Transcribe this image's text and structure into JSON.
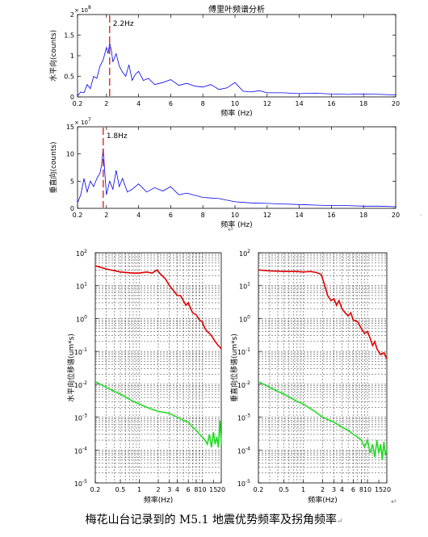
{
  "figure": {
    "caption": "梅花山台记录到的 M5.1 地震优势频率及拐角频率",
    "para_mark_1": "↵",
    "para_mark_2": "↵",
    "para_mark_3": "↵",
    "side_mark": "˙"
  },
  "colors": {
    "fft_line": "#0000ee",
    "peak_marker": "#dd0000",
    "spectrum_top": "#e00000",
    "spectrum_bottom": "#22dd22",
    "axis": "#000000",
    "grid": "#000000"
  },
  "chart_data": [
    {
      "type": "line",
      "title": "傅里叶频谱分析",
      "xlabel": "频率 (Hz)",
      "ylabel": "水平向(counts)",
      "xlim": [
        0.2,
        20
      ],
      "ylim": [
        0,
        2
      ],
      "y_multiplier": "× 10",
      "y_exponent": "8",
      "x_ticks": [
        0.2,
        2,
        4,
        6,
        8,
        10,
        12,
        14,
        16,
        18,
        20
      ],
      "x_tick_labels": [
        "0.2",
        "2",
        "4",
        "6",
        "8",
        "10",
        "12",
        "14",
        "16",
        "18",
        "20"
      ],
      "y_ticks": [
        0,
        0.5,
        1,
        1.5,
        2
      ],
      "y_tick_labels": [
        "0",
        "0.5",
        "1",
        "1.5",
        "2"
      ],
      "peak": {
        "x": 2.2,
        "label": "2.2Hz"
      },
      "series": [
        {
          "x": [
            0.2,
            0.4,
            0.6,
            0.8,
            1.0,
            1.2,
            1.4,
            1.6,
            1.8,
            2.0,
            2.1,
            2.2,
            2.3,
            2.4,
            2.6,
            2.8,
            3.0,
            3.2,
            3.4,
            3.6,
            3.8,
            4.0,
            4.3,
            4.6,
            5.0,
            5.5,
            6.0,
            6.5,
            7.0,
            7.5,
            8.0,
            8.5,
            9.0,
            9.5,
            10.0,
            10.5,
            11.0,
            11.5,
            12.0,
            13.0,
            14.0,
            15.0,
            16.0,
            17.0,
            18.0,
            19.0,
            20.0
          ],
          "y": [
            0.02,
            0.12,
            0.1,
            0.3,
            0.2,
            0.5,
            0.45,
            0.75,
            0.9,
            1.2,
            1.05,
            1.3,
            1.15,
            0.85,
            1.05,
            0.75,
            0.6,
            0.5,
            0.78,
            0.4,
            0.55,
            0.62,
            0.4,
            0.45,
            0.3,
            0.35,
            0.42,
            0.28,
            0.33,
            0.26,
            0.24,
            0.3,
            0.18,
            0.22,
            0.35,
            0.14,
            0.12,
            0.15,
            0.1,
            0.1,
            0.08,
            0.09,
            0.07,
            0.06,
            0.07,
            0.06,
            0.05
          ]
        }
      ]
    },
    {
      "type": "line",
      "title": "",
      "xlabel": "频率 (Hz)",
      "ylabel": "垂直向(counts)",
      "xlim": [
        0.2,
        20
      ],
      "ylim": [
        0,
        15
      ],
      "y_multiplier": "× 10",
      "y_exponent": "7",
      "x_ticks": [
        0.2,
        2,
        4,
        6,
        8,
        10,
        12,
        14,
        16,
        18,
        20
      ],
      "x_tick_labels": [
        "0.2",
        "2",
        "4",
        "6",
        "8",
        "10",
        "12",
        "14",
        "16",
        "18",
        "20"
      ],
      "y_ticks": [
        0,
        5,
        10,
        15
      ],
      "y_tick_labels": [
        "0",
        "5",
        "10",
        "15"
      ],
      "peak": {
        "x": 1.8,
        "label": "1.8Hz"
      },
      "series": [
        {
          "x": [
            0.2,
            0.4,
            0.6,
            0.8,
            1.0,
            1.2,
            1.4,
            1.6,
            1.7,
            1.8,
            1.9,
            2.0,
            2.2,
            2.4,
            2.6,
            2.8,
            3.0,
            3.3,
            3.6,
            4.0,
            4.5,
            5.0,
            5.5,
            6.0,
            6.5,
            7.0,
            8.0,
            9.0,
            10.0,
            11.0,
            12.0,
            13.0,
            14.0,
            15.0,
            16.0,
            17.0,
            18.0,
            19.0,
            20.0
          ],
          "y": [
            1.0,
            2.5,
            5.5,
            3.0,
            5.0,
            4.0,
            5.5,
            6.5,
            8.0,
            11.0,
            6.5,
            2.5,
            5.0,
            3.5,
            7.0,
            4.0,
            5.5,
            3.0,
            3.5,
            4.5,
            3.0,
            3.8,
            3.2,
            4.0,
            2.5,
            2.8,
            2.0,
            1.8,
            1.2,
            1.0,
            0.9,
            0.8,
            0.7,
            0.6,
            0.5,
            0.5,
            0.4,
            0.4,
            0.3
          ]
        }
      ]
    },
    {
      "type": "line",
      "title": "",
      "xlabel": "频率(Hz)",
      "ylabel": "水平向位移谱(um*s)",
      "xscale": "log",
      "yscale": "log",
      "xlim": [
        0.2,
        20
      ],
      "ylim": [
        1e-05,
        100
      ],
      "grid": true,
      "x_ticks": [
        0.2,
        0.5,
        1,
        2,
        3,
        4,
        6,
        8,
        10,
        15,
        20
      ],
      "x_tick_labels": [
        "0.2",
        "0.5",
        "1",
        "2",
        "3",
        "4",
        "6",
        "8",
        "10",
        "15",
        "20"
      ],
      "y_ticks": [
        1e-05,
        0.0001,
        0.001,
        0.01,
        0.1,
        1,
        10,
        100
      ],
      "y_tick_mantissa": "10",
      "y_tick_exponents": [
        "-5",
        "-4",
        "-3",
        "-2",
        "-1",
        "0",
        "1",
        "2"
      ],
      "series": [
        {
          "x": [
            0.2,
            0.3,
            0.5,
            0.8,
            1.0,
            1.3,
            1.6,
            1.9,
            2.2,
            2.6,
            3.0,
            3.5,
            4.0,
            4.5,
            5.0,
            5.5,
            6.0,
            7.0,
            8.0,
            9.0,
            10,
            11,
            12,
            13,
            14,
            16,
            18,
            20
          ],
          "y": [
            40,
            32,
            26,
            24,
            24,
            26,
            24,
            30,
            22,
            16,
            10,
            7,
            5,
            5,
            3.5,
            2.5,
            3,
            1.5,
            1.3,
            0.9,
            0.8,
            0.5,
            0.4,
            0.35,
            0.3,
            0.2,
            0.15,
            0.12
          ]
        },
        {
          "x": [
            0.2,
            0.3,
            0.5,
            0.8,
            1.0,
            1.5,
            2.0,
            3.0,
            4.0,
            5.0,
            6.0,
            7.0,
            8.0,
            9.0,
            10,
            11,
            12,
            13,
            14,
            15,
            16,
            17,
            18,
            19,
            20
          ],
          "y": [
            0.012,
            0.008,
            0.005,
            0.003,
            0.0025,
            0.0018,
            0.0015,
            0.0013,
            0.001,
            0.0008,
            0.0007,
            0.0005,
            0.0004,
            0.0003,
            0.00025,
            0.0002,
            0.00015,
            0.0003,
            0.00012,
            0.00035,
            0.00015,
            0.00025,
            0.00012,
            0.0008,
            0.00015
          ]
        }
      ]
    },
    {
      "type": "line",
      "title": "",
      "xlabel": "频率(Hz)",
      "ylabel": "垂直向位移谱(um*s)",
      "xscale": "log",
      "yscale": "log",
      "xlim": [
        0.2,
        20
      ],
      "ylim": [
        1e-05,
        100
      ],
      "grid": true,
      "x_ticks": [
        0.2,
        0.5,
        1,
        2,
        3,
        4,
        6,
        8,
        10,
        15,
        20
      ],
      "x_tick_labels": [
        "0.2",
        "0.5",
        "1",
        "2",
        "3",
        "4",
        "6",
        "8",
        "10",
        "15",
        "20"
      ],
      "y_ticks": [
        1e-05,
        0.0001,
        0.001,
        0.01,
        0.1,
        1,
        10,
        100
      ],
      "y_tick_mantissa": "10",
      "y_tick_exponents": [
        "-5",
        "-4",
        "-3",
        "-2",
        "-1",
        "0",
        "1",
        "2"
      ],
      "series": [
        {
          "x": [
            0.2,
            0.3,
            0.5,
            0.8,
            1.0,
            1.3,
            1.6,
            1.9,
            2.1,
            2.4,
            2.7,
            3.0,
            3.3,
            3.6,
            4.0,
            4.5,
            5.0,
            5.5,
            6.0,
            7.0,
            8.0,
            9.0,
            10,
            11,
            12,
            13,
            14,
            16,
            18,
            20
          ],
          "y": [
            30,
            28,
            27,
            27,
            26,
            27,
            25,
            22,
            12,
            5,
            3.5,
            4,
            2.5,
            3.5,
            2,
            1.5,
            1.2,
            1.5,
            0.9,
            0.8,
            0.5,
            0.35,
            0.4,
            0.25,
            0.15,
            0.2,
            0.12,
            0.08,
            0.09,
            0.06
          ]
        },
        {
          "x": [
            0.2,
            0.3,
            0.5,
            0.8,
            1.0,
            1.5,
            2.0,
            3.0,
            4.0,
            5.0,
            6.0,
            7.0,
            8.0,
            9.0,
            10,
            11,
            12,
            13,
            14,
            15,
            16,
            17,
            18,
            19,
            20
          ],
          "y": [
            0.012,
            0.008,
            0.005,
            0.003,
            0.0025,
            0.0015,
            0.001,
            0.0007,
            0.0005,
            0.0004,
            0.0003,
            0.00025,
            0.0002,
            0.00012,
            0.0002,
            8e-05,
            0.00015,
            6e-05,
            0.0002,
            8e-05,
            0.00015,
            5e-05,
            0.00018,
            7e-05,
            0.0001
          ]
        }
      ]
    }
  ]
}
